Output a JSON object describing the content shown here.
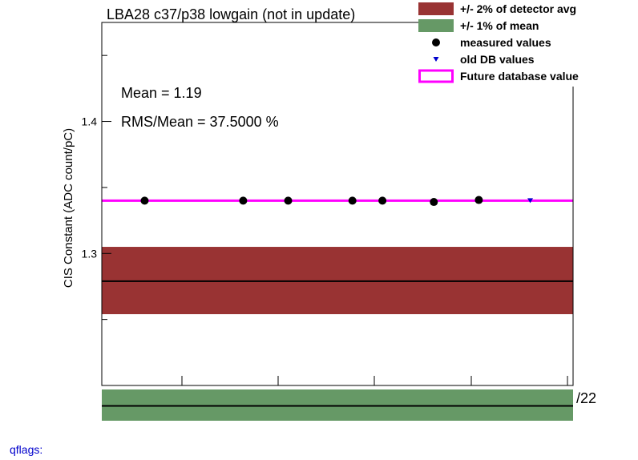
{
  "chart_data": {
    "type": "scatter",
    "title": "LBA28 c37/p38 lowgain (not in update)",
    "ylabel": "CIS Constant (ADC count/pC)",
    "xlabel": "",
    "ylim": [
      1.2,
      1.475
    ],
    "xlim": [
      0,
      11
    ],
    "y_ticks": [
      {
        "value": 1.3,
        "label": "1.3"
      },
      {
        "value": 1.4,
        "label": "1.4"
      }
    ],
    "x_axis_suffix": "/22",
    "detector_avg": 1.279,
    "detector_band": [
      1.254,
      1.305
    ],
    "mean_band_note": "+/- 1% of mean",
    "future_db_value": 1.34,
    "series": [
      {
        "name": "measured values",
        "marker": "circle",
        "color": "#000000",
        "x": [
          1.0,
          3.3,
          4.35,
          5.85,
          6.55,
          7.75,
          8.8
        ],
        "y": [
          1.34,
          1.34,
          1.34,
          1.34,
          1.34,
          1.339,
          1.3405
        ]
      },
      {
        "name": "old DB values",
        "marker": "triangle-down",
        "color": "#0000cc",
        "x": [
          10.0
        ],
        "y": [
          1.34
        ]
      }
    ],
    "stats": {
      "mean": "Mean = 1.19",
      "rms": "RMS/Mean = 37.5000 %"
    },
    "legend": {
      "placement": "top-right",
      "entries": [
        {
          "label": "+/- 2% of detector avg",
          "swatch": "fill",
          "color": "#993333"
        },
        {
          "label": "+/- 1% of mean",
          "swatch": "fill",
          "color": "#669966"
        },
        {
          "label": "measured values",
          "swatch": "circle",
          "color": "#000000"
        },
        {
          "label": "old DB values",
          "swatch": "triangle",
          "color": "#0000cc"
        },
        {
          "label": "Future database value",
          "swatch": "line",
          "color": "#ff00ff"
        }
      ]
    },
    "colors": {
      "detector_band": "#993333",
      "mean_band": "#669966",
      "future_line": "#ff00ff",
      "avg_line": "#000000"
    }
  },
  "footer": {
    "qflags_label": "qflags:"
  }
}
